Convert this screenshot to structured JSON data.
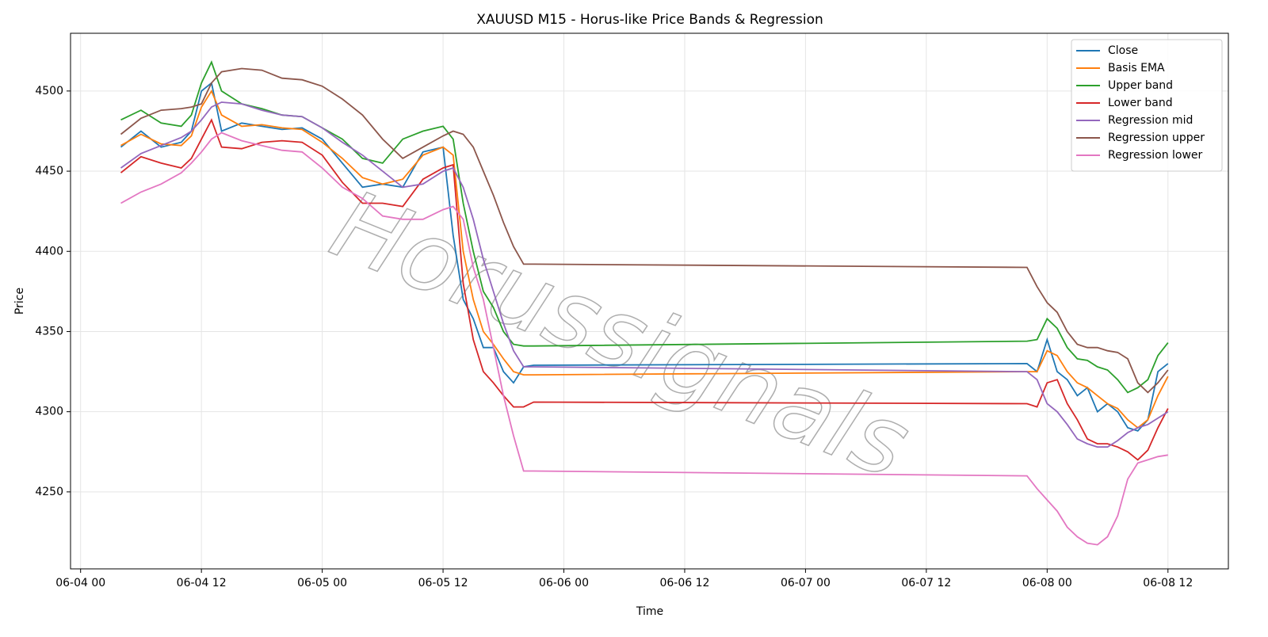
{
  "chart_data": {
    "type": "line",
    "title": "XAUUSD M15 - Horus-like Price Bands & Regression",
    "x_label": "Time",
    "y_label": "Price",
    "watermark": "Horussignals",
    "x": [
      "06-04 04",
      "06-04 06",
      "06-04 08",
      "06-04 10",
      "06-04 11",
      "06-04 12",
      "06-04 13",
      "06-04 14",
      "06-04 16",
      "06-04 18",
      "06-04 20",
      "06-04 22",
      "06-05 00",
      "06-05 02",
      "06-05 04",
      "06-05 06",
      "06-05 08",
      "06-05 10",
      "06-05 12",
      "06-05 13",
      "06-05 14",
      "06-05 15",
      "06-05 16",
      "06-05 17",
      "06-05 18",
      "06-05 19",
      "06-05 20",
      "06-05 21",
      "06-07 22",
      "06-07 23",
      "06-08 00",
      "06-08 01",
      "06-08 02",
      "06-08 03",
      "06-08 04",
      "06-08 05",
      "06-08 06",
      "06-08 07",
      "06-08 08",
      "06-08 09",
      "06-08 10",
      "06-08 11",
      "06-08 12"
    ],
    "series": [
      {
        "name": "Close",
        "color": "#1f77b4",
        "values": [
          4465,
          4475,
          4465,
          4468,
          4475,
          4500,
          4505,
          4475,
          4480,
          4478,
          4476,
          4477,
          4470,
          4455,
          4440,
          4442,
          4440,
          4462,
          4465,
          4410,
          4370,
          4358,
          4340,
          4340,
          4325,
          4318,
          4328,
          4329,
          4330,
          4325,
          4345,
          4325,
          4320,
          4310,
          4315,
          4300,
          4305,
          4300,
          4290,
          4288,
          4295,
          4325,
          4330
        ]
      },
      {
        "name": "Basis EMA",
        "color": "#ff7f0e",
        "values": [
          4466,
          4473,
          4467,
          4466,
          4472,
          4490,
          4500,
          4485,
          4478,
          4479,
          4477,
          4476,
          4468,
          4458,
          4446,
          4442,
          4445,
          4460,
          4465,
          4460,
          4400,
          4370,
          4350,
          4342,
          4333,
          4325,
          4323,
          4323,
          4325,
          4325,
          4338,
          4335,
          4325,
          4318,
          4315,
          4310,
          4305,
          4302,
          4295,
          4290,
          4295,
          4310,
          4322
        ]
      },
      {
        "name": "Upper band",
        "color": "#2ca02c",
        "values": [
          4482,
          4488,
          4480,
          4478,
          4485,
          4505,
          4518,
          4500,
          4492,
          4489,
          4485,
          4484,
          4477,
          4470,
          4458,
          4455,
          4470,
          4475,
          4478,
          4470,
          4430,
          4400,
          4375,
          4365,
          4350,
          4342,
          4341,
          4341,
          4344,
          4345,
          4358,
          4352,
          4340,
          4333,
          4332,
          4328,
          4326,
          4320,
          4312,
          4315,
          4320,
          4335,
          4343
        ]
      },
      {
        "name": "Lower band",
        "color": "#d62728",
        "values": [
          4449,
          4459,
          4455,
          4452,
          4458,
          4470,
          4482,
          4465,
          4464,
          4468,
          4469,
          4468,
          4460,
          4443,
          4430,
          4430,
          4428,
          4445,
          4452,
          4454,
          4380,
          4345,
          4325,
          4318,
          4310,
          4303,
          4303,
          4306,
          4305,
          4303,
          4318,
          4320,
          4305,
          4295,
          4283,
          4280,
          4280,
          4278,
          4275,
          4270,
          4276,
          4290,
          4302
        ]
      },
      {
        "name": "Regression mid",
        "color": "#9467bd",
        "values": [
          4452,
          4461,
          4466,
          4471,
          4475,
          4482,
          4490,
          4493,
          4492,
          4488,
          4485,
          4484,
          4477,
          4468,
          4460,
          4450,
          4440,
          4442,
          4450,
          4452,
          4440,
          4420,
          4395,
          4375,
          4355,
          4338,
          4328,
          4328,
          4325,
          4320,
          4305,
          4300,
          4292,
          4283,
          4280,
          4278,
          4278,
          4282,
          4287,
          4290,
          4292,
          4296,
          4300
        ]
      },
      {
        "name": "Regression upper",
        "color": "#8c564b",
        "values": [
          4473,
          4483,
          4488,
          4489,
          4490,
          4492,
          4505,
          4512,
          4514,
          4513,
          4508,
          4507,
          4503,
          4495,
          4485,
          4470,
          4458,
          4465,
          4472,
          4475,
          4473,
          4465,
          4450,
          4435,
          4418,
          4403,
          4392,
          4392,
          4390,
          4378,
          4368,
          4362,
          4350,
          4342,
          4340,
          4340,
          4338,
          4337,
          4333,
          4318,
          4312,
          4318,
          4326
        ]
      },
      {
        "name": "Regression lower",
        "color": "#e377c2",
        "values": [
          4430,
          4437,
          4442,
          4449,
          4455,
          4462,
          4470,
          4474,
          4469,
          4466,
          4463,
          4462,
          4452,
          4440,
          4433,
          4422,
          4420,
          4420,
          4426,
          4428,
          4420,
          4390,
          4370,
          4340,
          4310,
          4285,
          4263,
          4263,
          4260,
          4252,
          4245,
          4238,
          4228,
          4222,
          4218,
          4217,
          4222,
          4235,
          4258,
          4268,
          4270,
          4272,
          4273
        ]
      }
    ],
    "xlim": [
      "06-03 23",
      "06-08 18"
    ],
    "xticks": [
      "06-04 00",
      "06-04 12",
      "06-05 00",
      "06-05 12",
      "06-06 00",
      "06-06 12",
      "06-07 00",
      "06-07 12",
      "06-08 00",
      "06-08 12"
    ],
    "ylim": [
      4202,
      4536
    ],
    "yticks": [
      4250,
      4300,
      4350,
      4400,
      4450,
      4500
    ],
    "grid": true,
    "legend": "upper right"
  }
}
